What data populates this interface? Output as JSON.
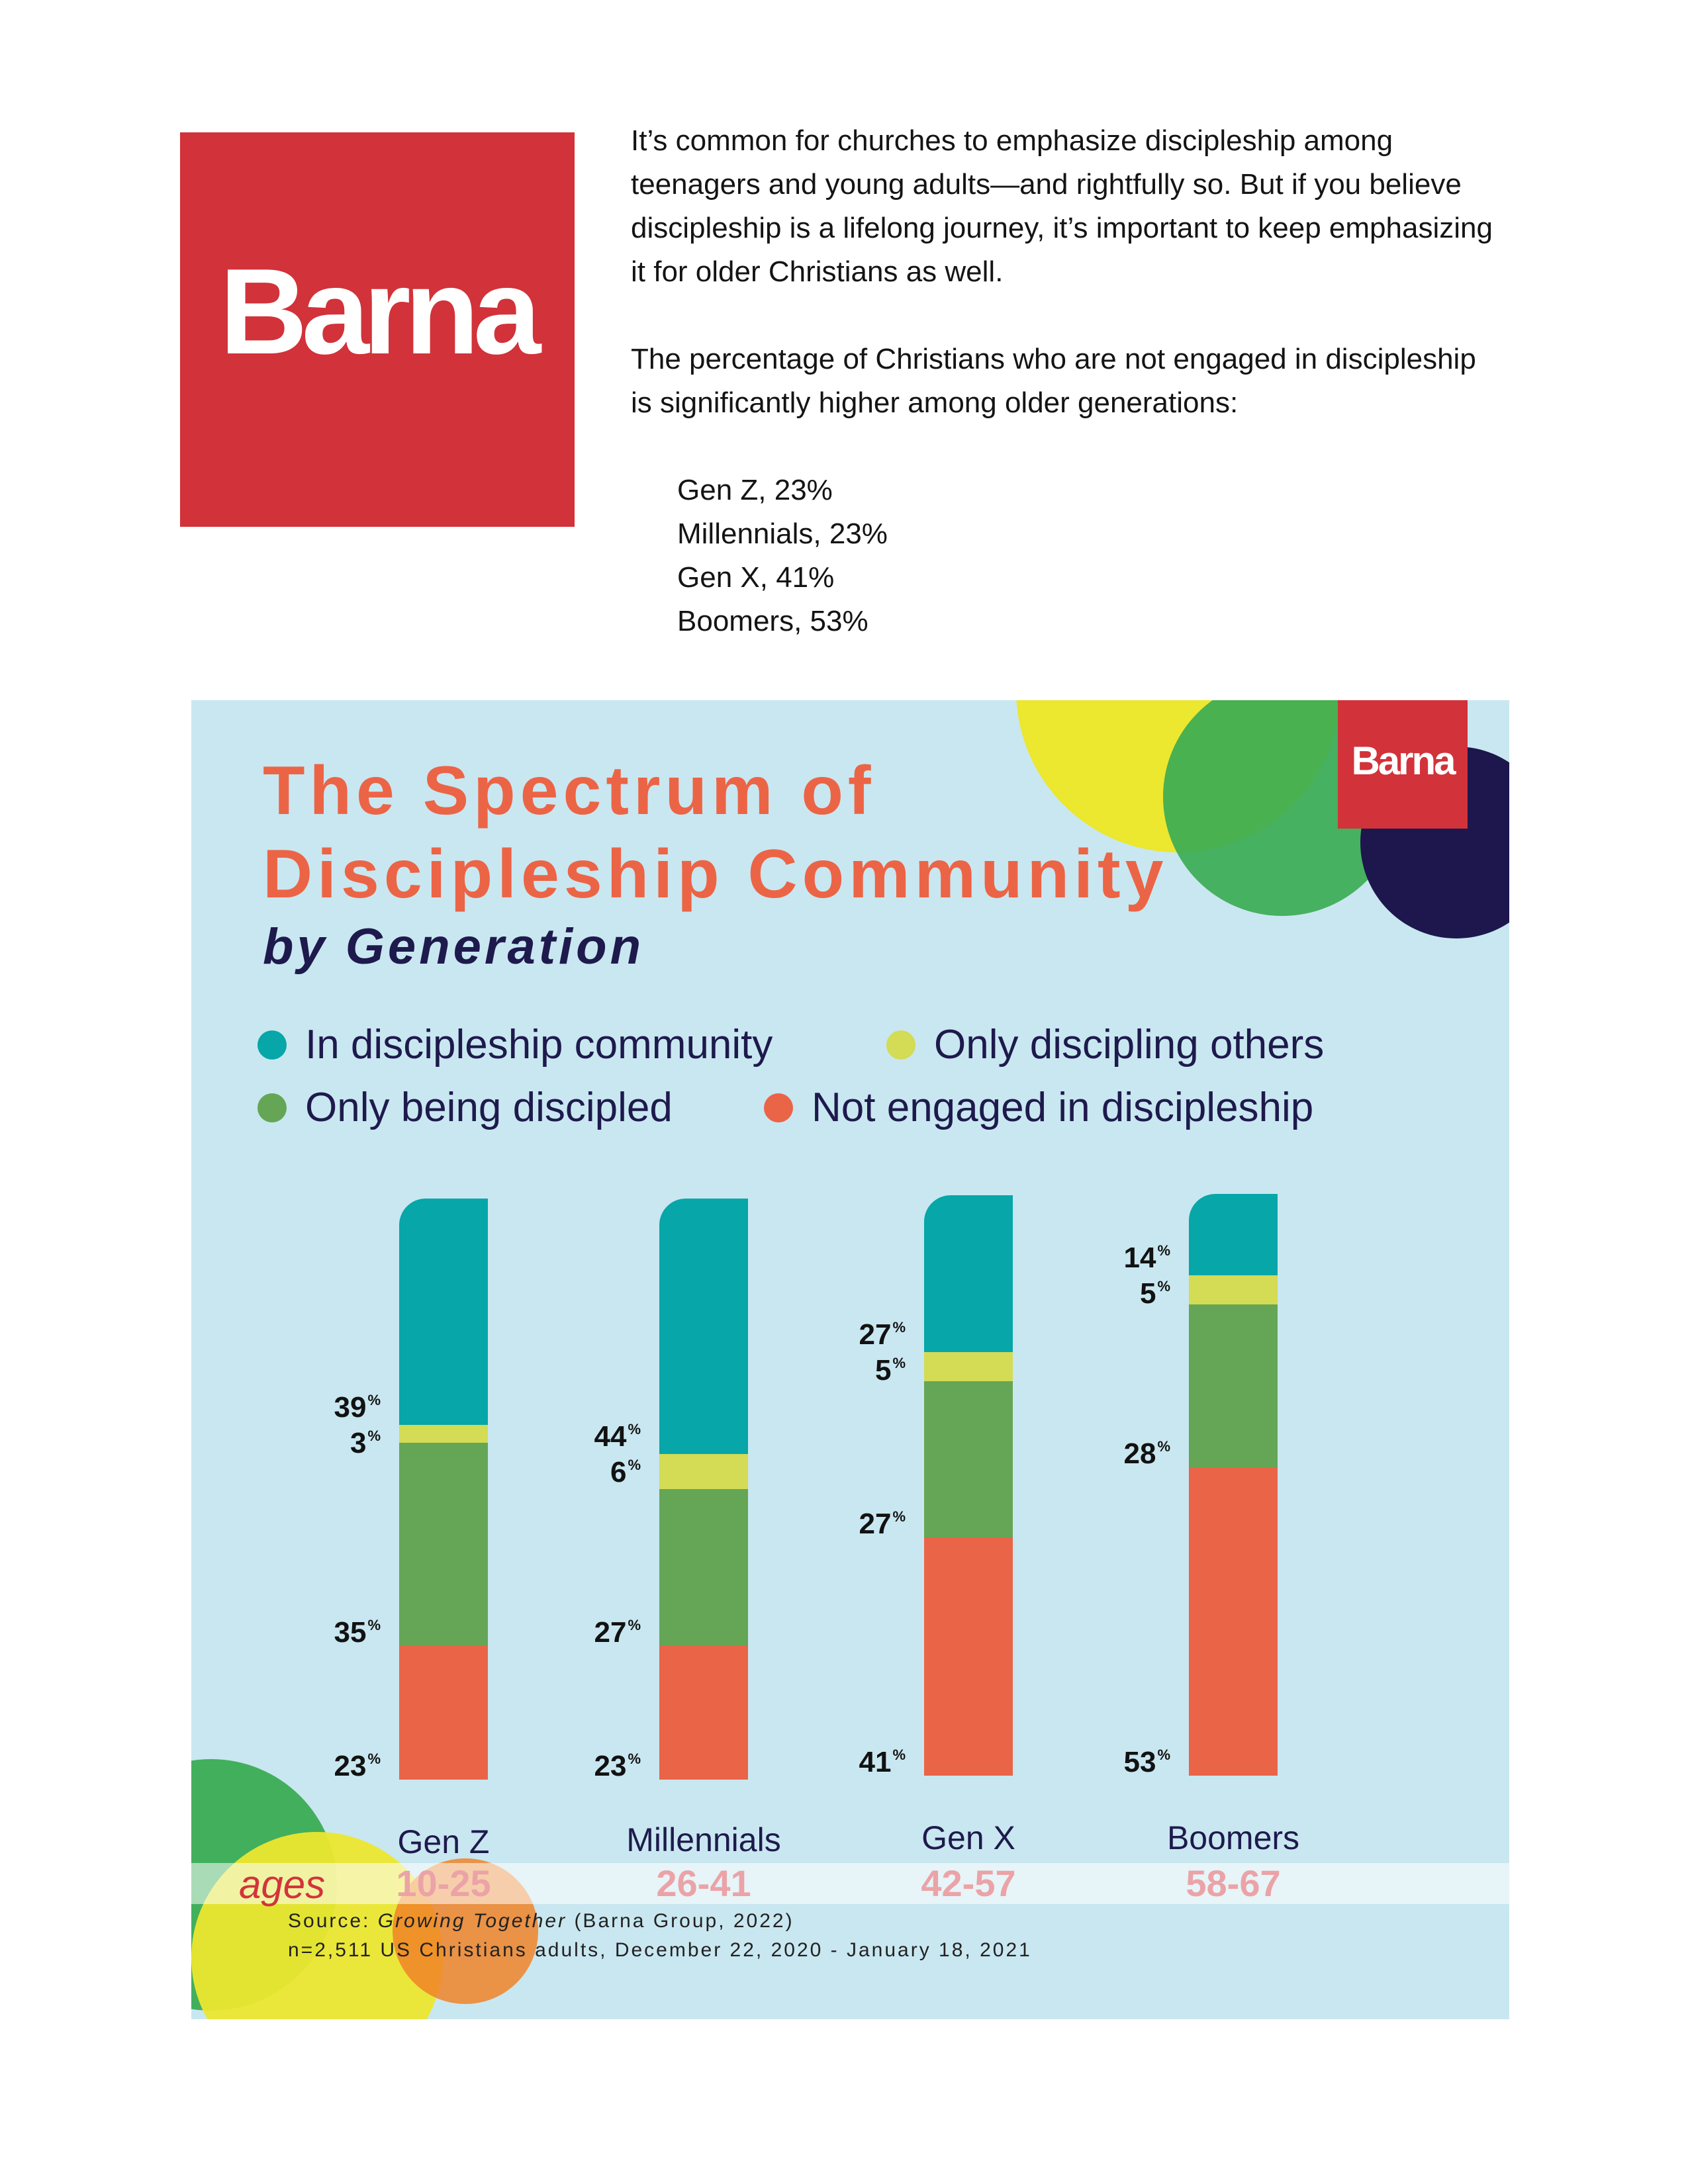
{
  "header": {
    "logo_text": "Barna",
    "paragraphs": [
      "It’s common for churches to emphasize discipleship among teenagers and young adults—and rightfully so. But if you believe discipleship is a lifelong journey, it’s important to keep emphasizing it for older Christians as well.",
      "The percentage of Christians who are not engaged in discipleship is significantly higher among older generations:"
    ],
    "list": [
      "Gen Z, 23%",
      "Millennials, 23%",
      "Gen X, 41%",
      "Boomers, 53%"
    ]
  },
  "infographic": {
    "title_line1": "The Spectrum of",
    "title_line2": "Discipleship Community",
    "subtitle": "by Generation",
    "badge": "Barna",
    "ages_label": "ages",
    "source_prefix": "Source: ",
    "source_title": "Growing Together",
    "source_suffix": " (Barna Group, 2022)",
    "sample": "n=2,511 US Christians adults, December 22, 2020 - January 18, 2021"
  },
  "colors": {
    "teal": "#06a6a9",
    "yellow": "#d4db54",
    "green": "#64a656",
    "orange": "#ea6447",
    "navy": "#1e1a4d",
    "red": "#d23239",
    "background": "#c9e7f0"
  },
  "chart_data": {
    "type": "bar",
    "stacked": true,
    "categories": [
      "Gen Z",
      "Millennials",
      "Gen X",
      "Boomers"
    ],
    "age_ranges": [
      "10-25",
      "26-41",
      "42-57",
      "58-67"
    ],
    "series": [
      {
        "name": "In discipleship community",
        "color": "#06a6a9",
        "values": [
          39,
          44,
          27,
          14
        ]
      },
      {
        "name": "Only discipling others",
        "color": "#d4db54",
        "values": [
          3,
          6,
          5,
          5
        ]
      },
      {
        "name": "Only being discipled",
        "color": "#64a656",
        "values": [
          35,
          27,
          27,
          28
        ]
      },
      {
        "name": "Not engaged in discipleship",
        "color": "#ea6447",
        "values": [
          23,
          23,
          41,
          53
        ]
      }
    ],
    "unit": "%",
    "legend_position": "top",
    "grid": false
  }
}
